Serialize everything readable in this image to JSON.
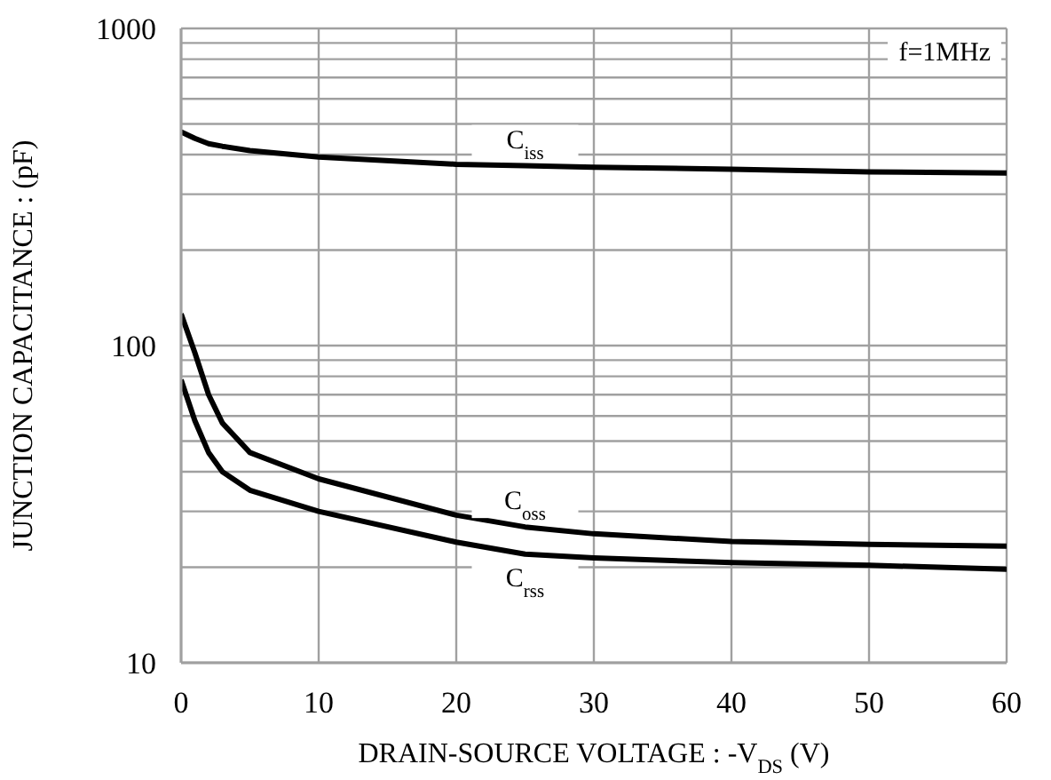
{
  "chart_data": {
    "type": "line",
    "xlabel": "DRAIN-SOURCE VOLTAGE : -V$_{DS}$ (V)",
    "ylabel": "JUNCTION CAPACITANCE : (pF)",
    "annotations": [
      "f=1MHz"
    ],
    "x": [
      0,
      1,
      2,
      3,
      5,
      10,
      20,
      25,
      30,
      40,
      50,
      60
    ],
    "series": [
      {
        "name": "C$_{iss}$",
        "color": "#000000",
        "values": [
          472,
          450,
          433,
          425,
          412,
          393,
          373,
          369,
          365,
          360,
          353,
          350
        ]
      },
      {
        "name": "C$_{oss}$",
        "color": "#000000",
        "values": [
          126,
          95,
          70,
          57,
          46,
          38,
          29.2,
          26.8,
          25.5,
          24.1,
          23.6,
          23.3
        ]
      },
      {
        "name": "C$_{rss}$",
        "color": "#000000",
        "values": [
          78,
          58,
          46,
          40,
          35,
          30,
          24,
          22,
          21.4,
          20.7,
          20.3,
          19.7
        ]
      }
    ],
    "xlim": [
      0,
      60
    ],
    "xticks": [
      0,
      10,
      20,
      30,
      40,
      50,
      60
    ],
    "ylim": [
      10,
      1000
    ],
    "yticks": [
      10,
      {
        "value": 20,
        "label": null
      },
      {
        "value": 30,
        "label": null
      },
      {
        "value": 40,
        "label": null
      },
      {
        "value": 50,
        "label": null
      },
      {
        "value": 60,
        "label": null
      },
      {
        "value": 70,
        "label": null
      },
      {
        "value": 80,
        "label": null
      },
      {
        "value": 90,
        "label": null
      },
      100,
      {
        "value": 200,
        "label": null
      },
      {
        "value": 300,
        "label": null
      },
      {
        "value": 400,
        "label": null
      },
      {
        "value": 500,
        "label": null
      },
      {
        "value": 600,
        "label": null
      },
      {
        "value": 700,
        "label": null
      },
      {
        "value": 800,
        "label": null
      },
      {
        "value": 900,
        "label": null
      },
      1000
    ],
    "log": "y",
    "grid": true,
    "legend": false
  }
}
